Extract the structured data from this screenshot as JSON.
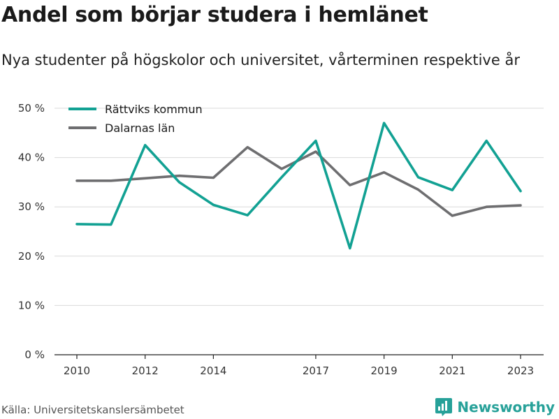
{
  "title": "Andel som börjar studera i hemlänet",
  "subtitle": "Nya studenter på högskolor och universitet, vårterminen respektive år",
  "source": "Källa: Universitetskanslersämbetet",
  "brand": "Newsworthy",
  "colors": {
    "series_1": "#12a193",
    "series_2": "#6e6e70",
    "grid": "#d9d9d9",
    "brand": "#27a199"
  },
  "chart_data": {
    "type": "line",
    "x": [
      2010,
      2011,
      2012,
      2013,
      2014,
      2015,
      2016,
      2017,
      2018,
      2019,
      2020,
      2021,
      2022,
      2023
    ],
    "x_ticks": [
      2010,
      2012,
      2014,
      2017,
      2019,
      2021,
      2023
    ],
    "x_tick_labels": [
      "2010",
      "2012",
      "2014",
      "2017",
      "2019",
      "2021",
      "2023"
    ],
    "y_ticks": [
      0,
      10,
      20,
      30,
      40,
      50
    ],
    "y_tick_labels": [
      "0 %",
      "10 %",
      "20 %",
      "30 %",
      "40 %",
      "50 %"
    ],
    "ylim": [
      0,
      50
    ],
    "grid": true,
    "legend_position": "top-left",
    "series": [
      {
        "name": "Rättviks kommun",
        "color": "#12a193",
        "values": [
          26.5,
          26.4,
          42.5,
          35.0,
          30.4,
          28.3,
          36.0,
          43.4,
          21.6,
          47.0,
          36.0,
          33.4,
          43.4,
          33.2
        ]
      },
      {
        "name": "Dalarnas län",
        "color": "#6e6e70",
        "values": [
          35.3,
          35.3,
          35.8,
          36.3,
          35.9,
          42.1,
          37.7,
          41.2,
          34.4,
          37.0,
          33.5,
          28.2,
          30.0,
          30.3
        ]
      }
    ]
  }
}
